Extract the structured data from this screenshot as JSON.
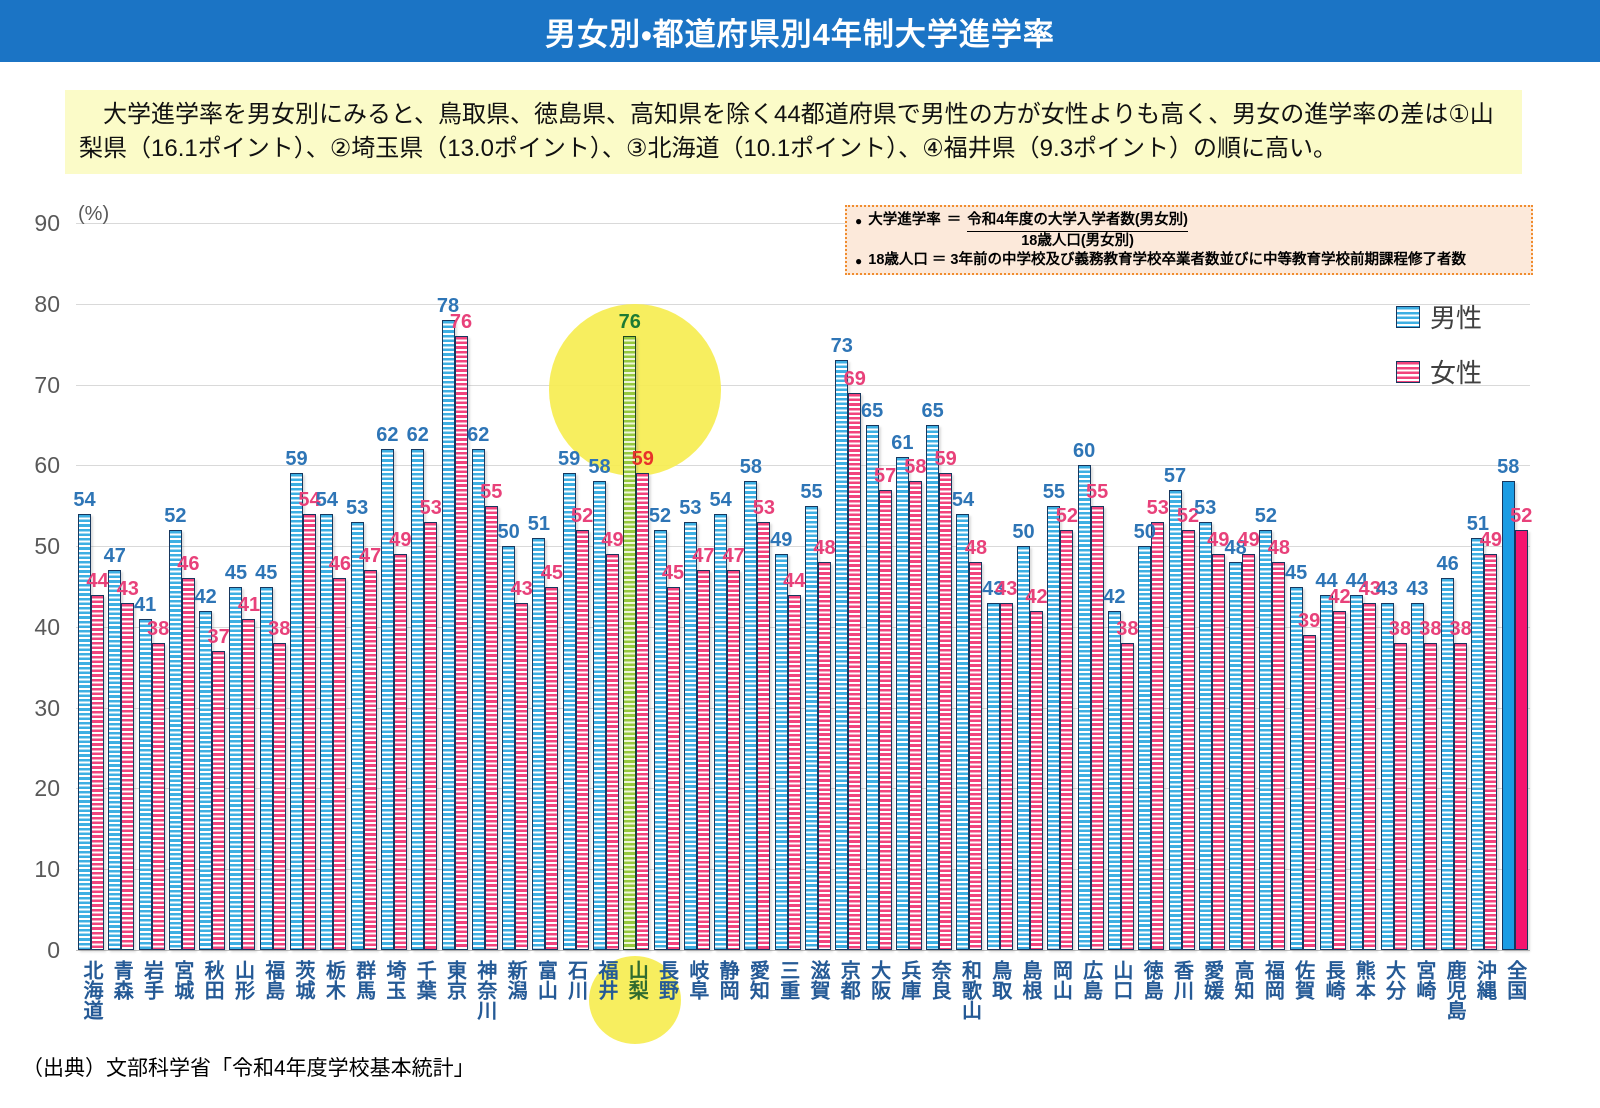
{
  "title": "男女別・都道府県別4年制大学進学率",
  "summary": "　大学進学率を男女別にみると、鳥取県、徳島県、高知県を除く44都道府県で男性の方が女性よりも高く、男女の進学率の差は①山梨県（16.1ポイント）、②埼玉県（13.0ポイント）、③北海道（10.1ポイント）、④福井県（9.3ポイント）の順に高い。",
  "note_box": {
    "bullet": "●",
    "rate_label": "大学進学率",
    "equals": "＝",
    "rate_numerator": "令和4年度の大学入学者数(男女別)",
    "rate_denominator": "18歳人口(男女別)",
    "pop_line": "18歳人口 ＝ 3年前の中学校及び義務教育学校卒業者数並びに中等教育学校前期課程修了者数"
  },
  "legend": {
    "male_label": "男性",
    "female_label": "女性"
  },
  "source": "（出典）文部科学省「令和4年度学校基本統計」",
  "chart_data": {
    "type": "bar",
    "title": "男女別・都道府県別4年制大学進学率",
    "unit": "(%)",
    "ylim": [
      0,
      90
    ],
    "y_ticks": [
      0,
      10,
      20,
      30,
      40,
      50,
      60,
      70,
      80,
      90
    ],
    "grid": true,
    "legend_position": "top-right",
    "categories": [
      "北海道",
      "青森",
      "岩手",
      "宮城",
      "秋田",
      "山形",
      "福島",
      "茨城",
      "栃木",
      "群馬",
      "埼玉",
      "千葉",
      "東京",
      "神奈川",
      "新潟",
      "富山",
      "石川",
      "福井",
      "山梨",
      "長野",
      "岐阜",
      "静岡",
      "愛知",
      "三重",
      "滋賀",
      "京都",
      "大阪",
      "兵庫",
      "奈良",
      "和歌山",
      "鳥取",
      "島根",
      "岡山",
      "広島",
      "山口",
      "徳島",
      "香川",
      "愛媛",
      "高知",
      "福岡",
      "佐賀",
      "長崎",
      "熊本",
      "大分",
      "宮崎",
      "鹿児島",
      "沖縄",
      "全国"
    ],
    "series": [
      {
        "name": "男性",
        "values": [
          54,
          47,
          41,
          52,
          42,
          45,
          45,
          59,
          54,
          53,
          62,
          62,
          78,
          62,
          50,
          51,
          59,
          58,
          76,
          52,
          53,
          54,
          58,
          49,
          55,
          73,
          65,
          61,
          65,
          54,
          43,
          50,
          55,
          60,
          42,
          50,
          57,
          53,
          48,
          52,
          45,
          44,
          44,
          43,
          43,
          46,
          51,
          58
        ]
      },
      {
        "name": "女性",
        "values": [
          44,
          43,
          38,
          46,
          37,
          41,
          38,
          54,
          46,
          47,
          49,
          53,
          76,
          55,
          43,
          45,
          52,
          49,
          59,
          45,
          47,
          47,
          53,
          44,
          48,
          69,
          57,
          58,
          59,
          48,
          43,
          42,
          52,
          55,
          38,
          53,
          52,
          49,
          49,
          48,
          39,
          42,
          43,
          38,
          38,
          38,
          49,
          52
        ]
      }
    ],
    "highlight": {
      "category": "山梨",
      "series": "男性"
    },
    "national_category": "全国"
  },
  "colors": {
    "title_bar_bg": "#1B74C5",
    "summary_bg": "#FBFBC8",
    "note_bg": "#FCE9DA",
    "note_border": "#F08C2E",
    "male_bar": "#3DAFE3",
    "female_bar": "#F2437D",
    "male_label": "#2E75B6",
    "female_label": "#E8417A",
    "highlight_bar": "#96C93D",
    "highlight_label": "#1E7B34",
    "highlight_female_label": "#E8332A",
    "national_male_bar": "#1B9CE4",
    "national_female_bar": "#F4136E",
    "bar_border": "#17375E",
    "highlight_circle": "#F6ED51",
    "gridline": "#D9D9D9"
  }
}
